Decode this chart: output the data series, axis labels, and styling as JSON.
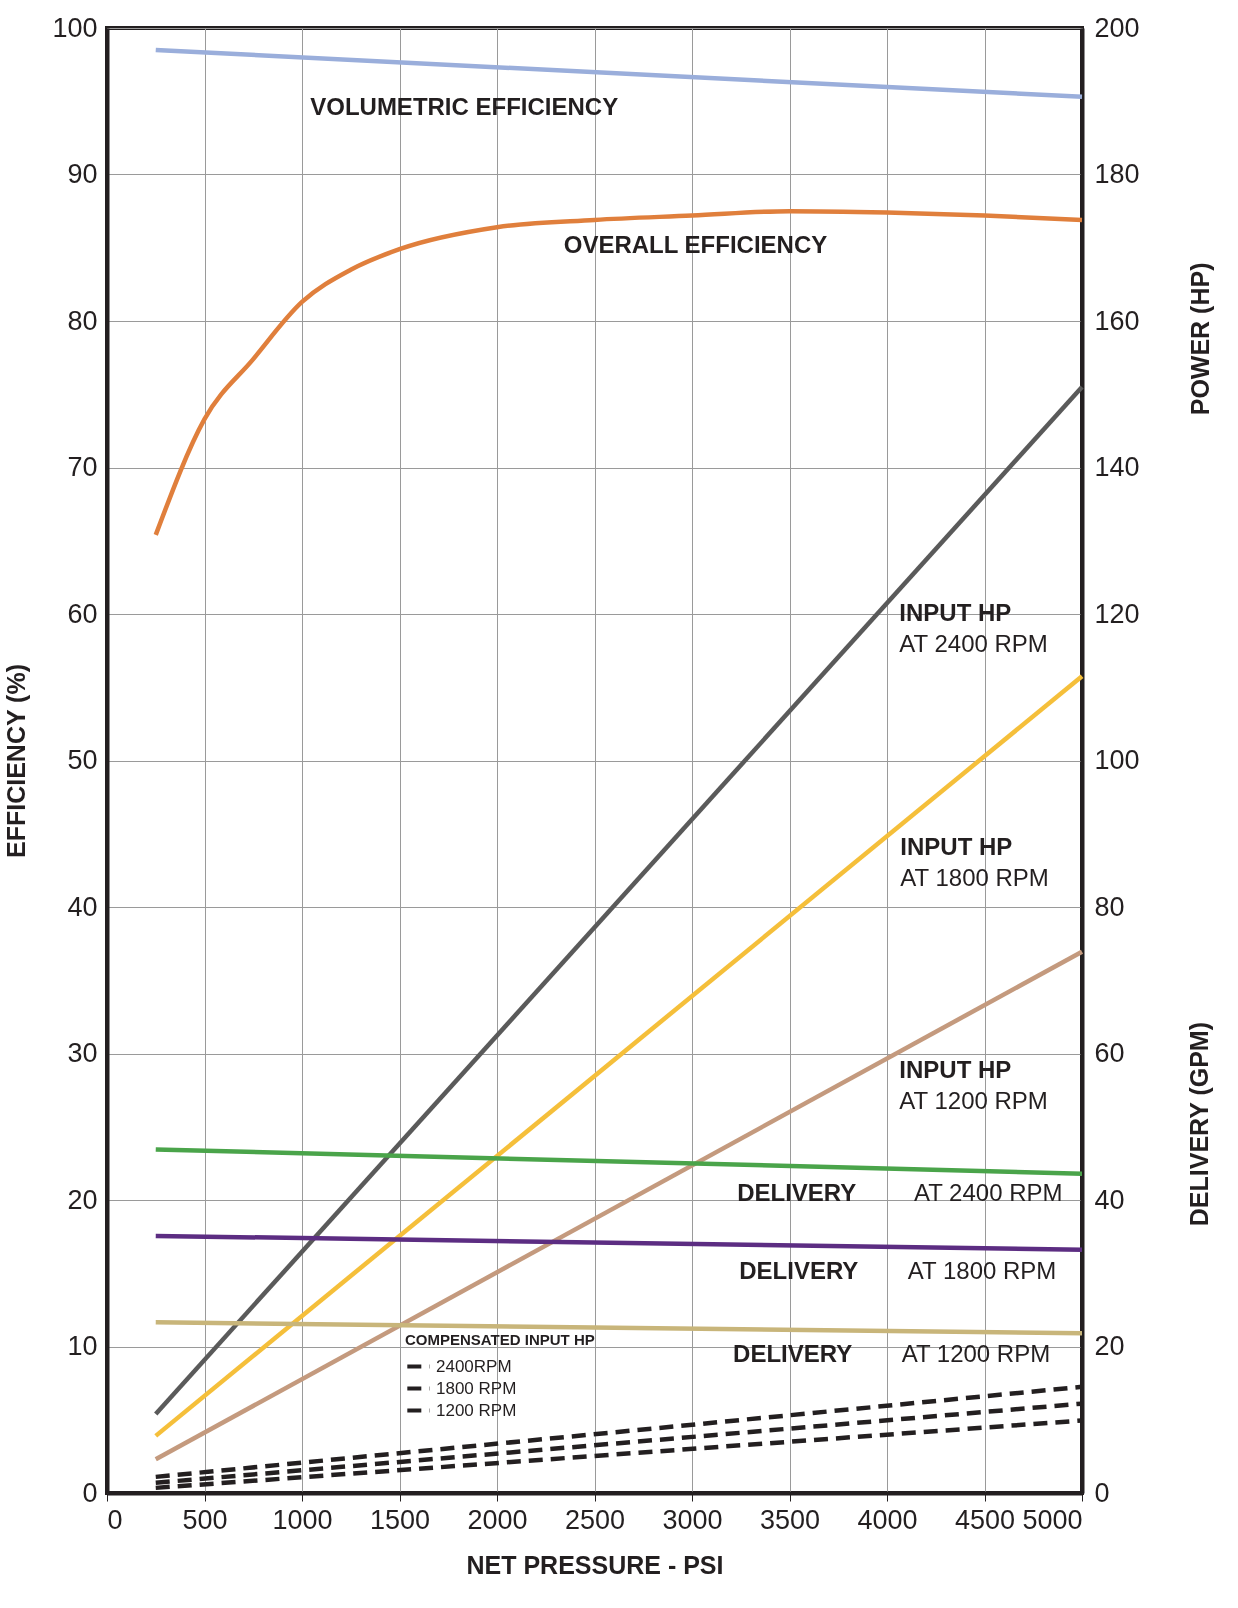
{
  "chart_data": {
    "type": "line",
    "xlabel": "NET PRESSURE - PSI",
    "ylabel": "EFFICIENCY (%)",
    "y2label": "POWER (HP)",
    "legend_title": "COMPENSATED INPUT HP",
    "legend": "bottom left",
    "grid": true,
    "line_style": "solid",
    "annotations": [
      "DELIVERY (GPM)"
    ],
    "xlim": [
      0,
      5000
    ],
    "xticks": [
      0,
      500,
      1000,
      1500,
      2000,
      2500,
      3000,
      3500,
      4000,
      4500,
      5000
    ],
    "ylim": [
      0,
      100
    ],
    "yticks": [
      0,
      10,
      20,
      30,
      40,
      50,
      60,
      70,
      80,
      90,
      100
    ],
    "y2lim": [
      0,
      200
    ],
    "y2ticks": [
      0,
      20,
      40,
      60,
      80,
      100,
      120,
      140,
      160,
      180,
      200
    ],
    "series": [
      {
        "name": "VOLUMETRIC EFFICIENCY",
        "color": "#9aaedb",
        "x": [
          250,
          5000
        ],
        "values": [
          98.5,
          95.3
        ]
      },
      {
        "name": "OVERALL EFFICIENCY",
        "color": "#e07f3c",
        "x": [
          250,
          500,
          750,
          1000,
          1250,
          1500,
          2000,
          2500,
          3000,
          3500,
          4000,
          4500,
          5000
        ],
        "values": [
          65.4,
          73.3,
          77.4,
          81.3,
          83.5,
          84.9,
          86.4,
          86.9,
          87.2,
          87.5,
          87.4,
          87.2,
          86.9
        ]
      },
      {
        "name": "INPUT HP AT 2400 RPM",
        "color": "#5a5a5a",
        "axis": "y2",
        "x": [
          250,
          5000
        ],
        "values": [
          10.8,
          151
        ]
      },
      {
        "name": "INPUT HP AT 1800 RPM",
        "color": "#f5bf3a",
        "axis": "y2",
        "x": [
          250,
          5000
        ],
        "values": [
          7.8,
          111.5
        ]
      },
      {
        "name": "INPUT HP AT 1200 RPM",
        "color": "#c49a7e",
        "axis": "y2",
        "x": [
          250,
          5000
        ],
        "values": [
          4.6,
          73.9
        ]
      },
      {
        "name": "DELIVERY AT 2400 RPM",
        "color": "#4aa44a",
        "axis": "y2",
        "x": [
          250,
          5000
        ],
        "values": [
          46.9,
          43.6
        ]
      },
      {
        "name": "DELIVERY AT 1800 RPM",
        "color": "#5c2d82",
        "axis": "y2",
        "x": [
          250,
          5000
        ],
        "values": [
          35.1,
          33.2
        ]
      },
      {
        "name": "DELIVERY AT 1200 RPM",
        "color": "#c8b57a",
        "axis": "y2",
        "x": [
          250,
          5000
        ],
        "values": [
          23.3,
          21.8
        ]
      },
      {
        "name": "2400RPM",
        "color": "#231f20",
        "axis": "y2",
        "line_style": "dashed",
        "x": [
          250,
          5000
        ],
        "values": [
          2.2,
          14.5
        ]
      },
      {
        "name": "1800 RPM",
        "color": "#231f20",
        "axis": "y2",
        "line_style": "dashed",
        "x": [
          250,
          5000
        ],
        "values": [
          1.4,
          12.2
        ]
      },
      {
        "name": "1200 RPM",
        "color": "#231f20",
        "axis": "y2",
        "line_style": "dashed",
        "x": [
          250,
          5000
        ],
        "values": [
          0.7,
          9.9
        ]
      }
    ]
  }
}
